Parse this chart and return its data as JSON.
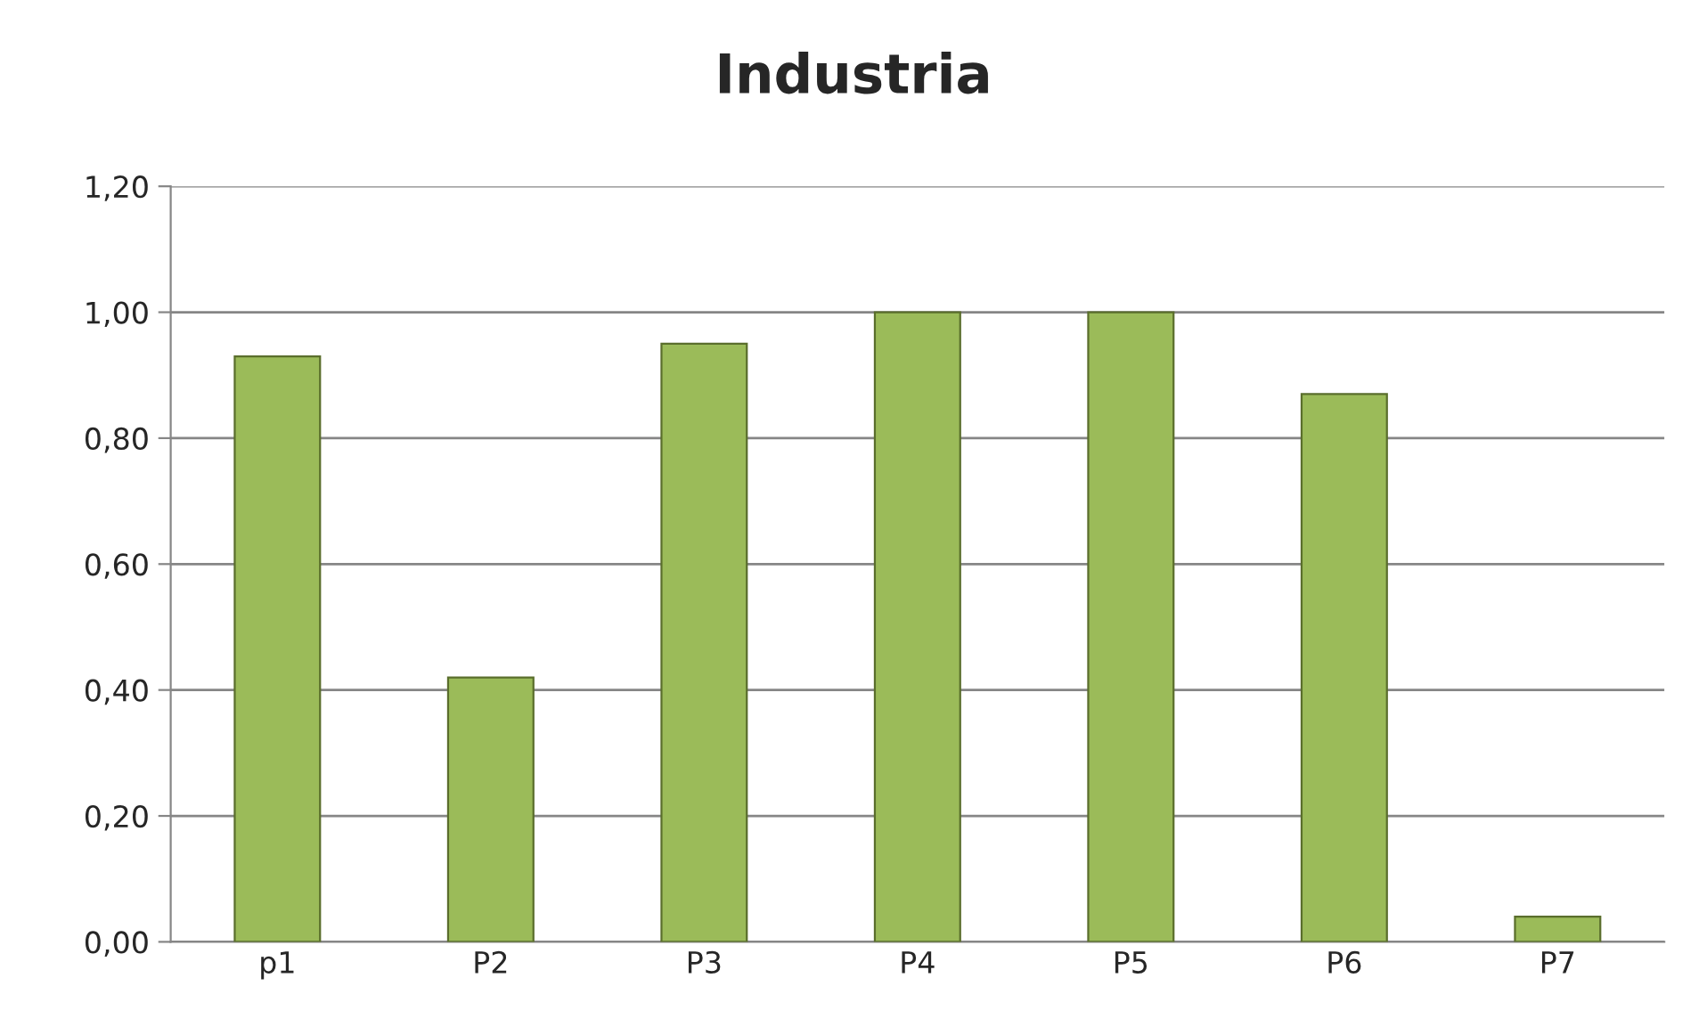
{
  "chart_data": {
    "type": "bar",
    "title": "Industria",
    "categories": [
      "p1",
      "P2",
      "P3",
      "P4",
      "P5",
      "P6",
      "P7"
    ],
    "values": [
      0.93,
      0.42,
      0.95,
      1.0,
      1.0,
      0.87,
      0.04
    ],
    "color": "#9bbb59",
    "ylim": [
      0,
      1.2
    ],
    "yticks": [
      {
        "value": 0,
        "label": "0,00"
      },
      {
        "value": 0.2,
        "label": "0,20"
      },
      {
        "value": 0.4,
        "label": "0,40"
      },
      {
        "value": 0.6,
        "label": "0,60"
      },
      {
        "value": 0.8,
        "label": "0,80"
      },
      {
        "value": 1.0,
        "label": "1,00"
      },
      {
        "value": 1.2,
        "label": "1,20"
      }
    ],
    "grid": "y",
    "legend": false
  }
}
